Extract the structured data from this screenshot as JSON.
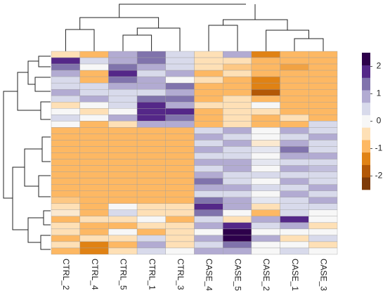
{
  "chart_data": {
    "type": "heatmap",
    "columns": [
      "CTRL_2",
      "CTRL_4",
      "CTRL_5",
      "CTRL_1",
      "CTRL_3",
      "CASE_4",
      "CASE_5",
      "CASE_2",
      "CASE_1",
      "CASE_3"
    ],
    "values": [
      [
        -0.5,
        -1,
        1,
        1.5,
        0.5,
        -0.5,
        1,
        -1.5,
        -1,
        -1
      ],
      [
        2,
        0.5,
        1,
        1.5,
        0.5,
        -0.5,
        -0.5,
        -1,
        -1,
        -1
      ],
      [
        1.5,
        0,
        1.5,
        1,
        0.5,
        -0.5,
        -0.8,
        -1,
        -1.2,
        -1
      ],
      [
        1,
        -1,
        2,
        0.5,
        1,
        -1,
        -0.5,
        -1,
        -1,
        -1
      ],
      [
        0.5,
        -1,
        1.5,
        1,
        0,
        -0.5,
        -1,
        -1.5,
        -1,
        -1
      ],
      [
        0.5,
        0.5,
        1,
        1,
        1.5,
        -1,
        -1,
        -1.5,
        -1,
        -1
      ],
      [
        1,
        0.5,
        0.5,
        0.5,
        1,
        -1,
        -1,
        -2,
        -1,
        -1
      ],
      [
        0.5,
        1,
        0.5,
        1.5,
        1.5,
        -1,
        -0.5,
        -1,
        -1,
        -1
      ],
      [
        -0.5,
        0,
        0.5,
        2,
        1,
        -0.5,
        -0.5,
        0,
        -1,
        -1
      ],
      [
        0,
        -0.5,
        0,
        2,
        2,
        -1,
        -0.5,
        -0.5,
        -1,
        -1
      ],
      [
        0.5,
        0,
        1,
        2,
        1.5,
        -1,
        -0.5,
        -1,
        -0.5,
        -1
      ],
      [
        0,
        -1,
        -0.5,
        1,
        1,
        -1,
        -0.5,
        -1,
        -1,
        0.5
      ],
      [
        -1,
        -1,
        -1,
        -1,
        -1,
        0.5,
        1,
        0,
        1,
        0.5
      ],
      [
        -1,
        -1,
        -1,
        -1,
        -1,
        1,
        0.5,
        0,
        0.5,
        1
      ],
      [
        -1,
        -1,
        -1,
        -1,
        -1,
        0.5,
        1,
        -0.3,
        1,
        0.5
      ],
      [
        -1,
        -1,
        -1,
        -1,
        -1,
        1,
        0.5,
        0.3,
        1.5,
        0.5
      ],
      [
        -1,
        -1,
        -1,
        -1,
        -1,
        0.5,
        0.5,
        0,
        1,
        1
      ],
      [
        -1,
        -1,
        -1,
        -1,
        -1,
        1,
        1,
        0.3,
        0.5,
        0.5
      ],
      [
        -1,
        -1,
        -1,
        -1,
        -1,
        0.5,
        1,
        0,
        1,
        0.8
      ],
      [
        -1,
        -1,
        -1,
        -1,
        -1,
        1,
        0.5,
        0.5,
        0.5,
        0.5
      ],
      [
        -1,
        -1,
        -1,
        -1,
        -1,
        1.5,
        0.5,
        0,
        1,
        0.5
      ],
      [
        -1,
        -1,
        -1,
        -1,
        -1,
        1,
        1,
        0.5,
        0.5,
        1
      ],
      [
        -1,
        -1,
        -1,
        -1,
        -1,
        0.5,
        0.5,
        0,
        1,
        0.5
      ],
      [
        -0.8,
        -1,
        -1,
        -1,
        -1,
        1.5,
        1,
        0.3,
        0.5,
        1
      ],
      [
        -0.5,
        -1,
        0,
        -0.5,
        -0.5,
        2,
        1,
        -0.5,
        0.5,
        0.5
      ],
      [
        -0.3,
        -1,
        0.5,
        -0.5,
        -0.5,
        1.5,
        0,
        -1,
        0.5,
        0
      ],
      [
        -1,
        -0.5,
        -0.5,
        0,
        -1,
        0.5,
        -0.5,
        1,
        2,
        0
      ],
      [
        -0.5,
        -1,
        -1,
        -0.5,
        -0.5,
        1,
        2,
        0.5,
        1,
        -0.5
      ],
      [
        -0.5,
        -1,
        0,
        -1,
        -0.5,
        0,
        2.5,
        0,
        0,
        0
      ],
      [
        -1,
        -0.5,
        -0.5,
        0.5,
        -0.5,
        1,
        2.5,
        1,
        -0.5,
        0.5
      ],
      [
        -0.5,
        -1.5,
        -1,
        1,
        -0.5,
        0.5,
        1.5,
        0,
        0,
        -0.5
      ],
      [
        -1,
        -1.5,
        -0.5,
        0.5,
        0,
        1,
        1,
        0,
        0.5,
        0
      ]
    ],
    "colors": [
      "#7f3b08",
      "#b35806",
      "#e08214",
      "#fdb863",
      "#fee0b6",
      "#f7f7f7",
      "#d8daeb",
      "#b2abd2",
      "#8073ac",
      "#542788",
      "#2d004b"
    ],
    "clim": [
      -2.5,
      2.5
    ],
    "cticks": [
      2,
      1,
      0,
      -1,
      -2
    ]
  }
}
